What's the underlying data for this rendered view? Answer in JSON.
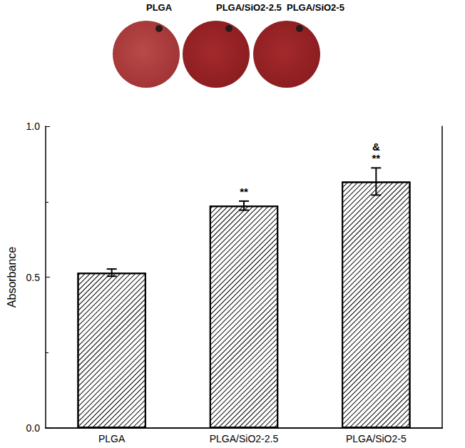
{
  "chart_data": {
    "type": "bar",
    "photo_labels": [
      "PLGA",
      "PLGA/SiO2-2.5",
      "PLGA/SiO2-5"
    ],
    "y_label": "Absorbance",
    "categories": [
      "PLGA",
      "PLGA/SiO2-2.5",
      "PLGA/SiO2-5"
    ],
    "values": [
      0.515,
      0.737,
      0.817
    ],
    "errors": [
      0.012,
      0.015,
      0.045
    ],
    "color": "#000000",
    "ylim": [
      0,
      1
    ],
    "yticks": [
      {
        "value": 0,
        "label": "0.0"
      },
      0.5,
      {
        "value": 1,
        "label": "1.0"
      }
    ],
    "grid": false,
    "annotations": [
      {
        "category": "PLGA/SiO2-2.5",
        "text": "**"
      },
      {
        "category": "PLGA/SiO2-5",
        "text": "**"
      },
      {
        "category": "PLGA/SiO2-5",
        "text": "&"
      }
    ]
  }
}
